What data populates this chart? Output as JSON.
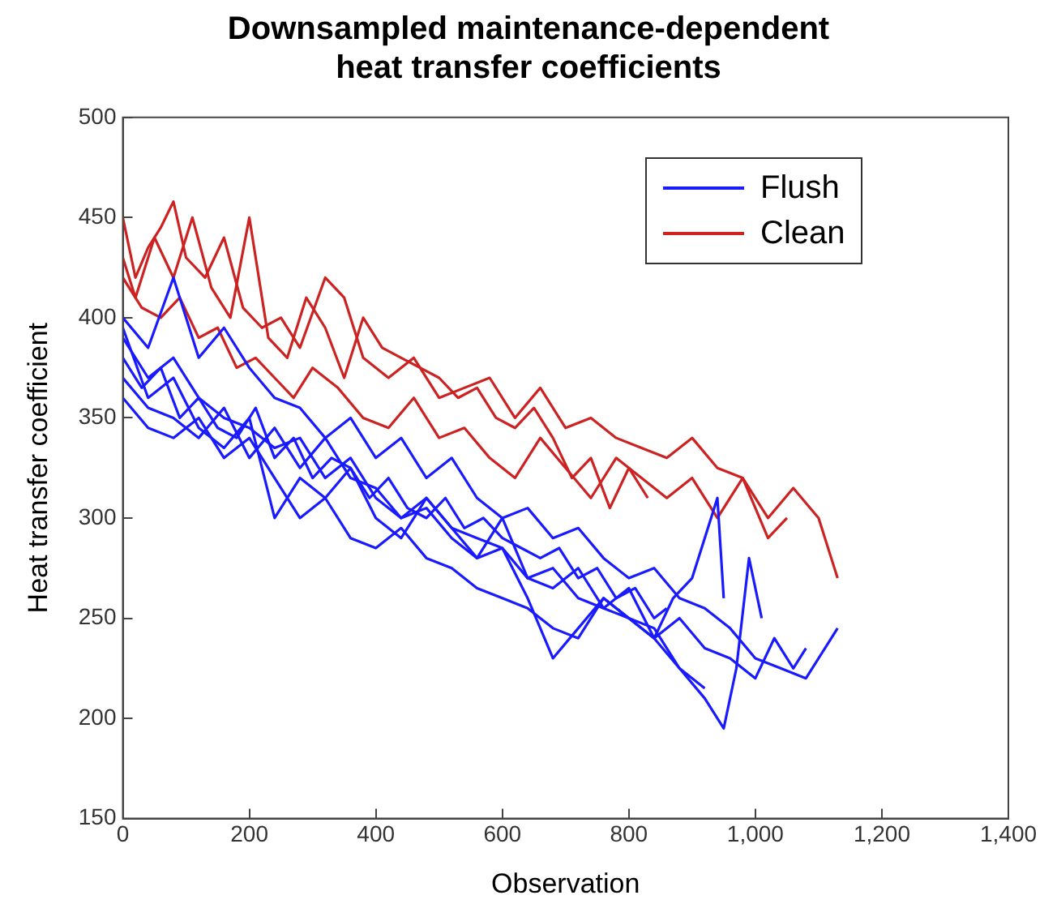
{
  "chart_data": {
    "type": "line",
    "title": "Downsampled maintenance-dependent heat transfer coefficients",
    "xlabel": "Observation",
    "ylabel": "Heat transfer coefficient",
    "xlim": [
      0,
      1400
    ],
    "xticks": [
      0,
      200,
      400,
      600,
      800,
      {
        "value": 1000,
        "label": "1,000"
      },
      {
        "value": 1200,
        "label": "1,200"
      },
      {
        "value": 1400,
        "label": "1,400"
      }
    ],
    "ylim": [
      150,
      500
    ],
    "yticks": [
      150,
      200,
      250,
      300,
      350,
      400,
      450,
      500
    ],
    "grid": false,
    "legend": "top right",
    "marker": "none",
    "line_style": "solid",
    "series": [
      {
        "name": "Flush",
        "color": "#1a1aff",
        "x": [
          0,
          40,
          80,
          120,
          160,
          200,
          240,
          280,
          320,
          360,
          400,
          440,
          480,
          520,
          560,
          600,
          640,
          680,
          720,
          760,
          800,
          840,
          880,
          920,
          960,
          1000,
          1040,
          1080,
          1110,
          1130
        ],
        "values": [
          400,
          385,
          420,
          380,
          395,
          375,
          360,
          355,
          340,
          350,
          330,
          340,
          320,
          330,
          310,
          300,
          305,
          290,
          295,
          280,
          270,
          275,
          260,
          255,
          245,
          230,
          225,
          220,
          235,
          245
        ]
      },
      {
        "color": "#1a1aff",
        "x": [
          0,
          40,
          80,
          120,
          160,
          200,
          240,
          280,
          320,
          360,
          400,
          440,
          480,
          520,
          560,
          600,
          640,
          680,
          720,
          760,
          800,
          840,
          880,
          920,
          950,
          970,
          990,
          1010
        ],
        "values": [
          370,
          355,
          350,
          340,
          355,
          330,
          345,
          325,
          340,
          320,
          315,
          300,
          310,
          295,
          290,
          285,
          270,
          275,
          260,
          255,
          250,
          245,
          225,
          210,
          195,
          225,
          280,
          250
        ]
      },
      {
        "color": "#1a1aff",
        "x": [
          0,
          40,
          80,
          120,
          160,
          200,
          240,
          280,
          320,
          360,
          400,
          440,
          480,
          520,
          560,
          600,
          640,
          680,
          720,
          760,
          800,
          840,
          870,
          900,
          920,
          940,
          950
        ],
        "values": [
          360,
          345,
          340,
          350,
          330,
          340,
          320,
          300,
          310,
          290,
          285,
          295,
          280,
          275,
          265,
          260,
          255,
          245,
          240,
          260,
          250,
          240,
          260,
          270,
          290,
          310,
          260
        ]
      },
      {
        "color": "#1a1aff",
        "x": [
          0,
          40,
          80,
          120,
          160,
          200,
          240,
          280,
          320,
          360,
          400,
          440,
          480,
          520,
          560,
          600,
          640,
          680,
          720,
          760,
          800,
          840,
          880,
          920
        ],
        "values": [
          390,
          370,
          380,
          360,
          350,
          345,
          335,
          340,
          320,
          330,
          310,
          300,
          305,
          290,
          280,
          285,
          260,
          230,
          245,
          260,
          250,
          240,
          225,
          215
        ]
      },
      {
        "color": "#1a1aff",
        "x": [
          0,
          30,
          60,
          90,
          120,
          150,
          180,
          210,
          240,
          270,
          300,
          330,
          360,
          390,
          420,
          450,
          480,
          510,
          540,
          570,
          600,
          630,
          660,
          690,
          720,
          750,
          780,
          810,
          840,
          860
        ],
        "values": [
          380,
          365,
          375,
          350,
          360,
          345,
          340,
          355,
          330,
          340,
          320,
          330,
          325,
          310,
          320,
          305,
          300,
          310,
          295,
          300,
          290,
          285,
          280,
          285,
          270,
          275,
          260,
          265,
          250,
          255
        ]
      },
      {
        "color": "#1a1aff",
        "x": [
          0,
          40,
          80,
          120,
          160,
          200,
          240,
          280,
          320,
          360,
          400,
          440,
          480,
          520,
          560,
          600,
          640,
          680,
          720,
          760,
          800,
          840,
          880,
          920,
          960,
          1000,
          1030,
          1060,
          1080
        ],
        "values": [
          395,
          360,
          370,
          345,
          335,
          350,
          300,
          320,
          310,
          325,
          300,
          290,
          310,
          295,
          280,
          300,
          270,
          265,
          275,
          255,
          265,
          240,
          250,
          235,
          230,
          220,
          240,
          225,
          235
        ]
      },
      {
        "name": "Clean",
        "color": "#cc2222",
        "x": [
          0,
          20,
          40,
          60,
          80,
          100,
          130,
          160,
          190,
          220,
          250,
          280,
          320,
          350,
          380,
          420,
          460,
          500,
          540,
          580,
          620,
          660,
          700,
          740,
          780,
          820,
          860,
          900,
          940,
          980,
          1020,
          1060,
          1100,
          1120,
          1130
        ],
        "values": [
          450,
          420,
          435,
          445,
          458,
          430,
          420,
          440,
          405,
          395,
          400,
          385,
          420,
          410,
          380,
          370,
          380,
          360,
          365,
          370,
          350,
          365,
          345,
          350,
          340,
          335,
          330,
          340,
          325,
          320,
          300,
          315,
          300,
          280,
          270
        ]
      },
      {
        "color": "#cc2222",
        "x": [
          0,
          30,
          60,
          90,
          120,
          150,
          180,
          210,
          240,
          270,
          300,
          340,
          380,
          420,
          460,
          500,
          540,
          580,
          620,
          660,
          700,
          740,
          780,
          820,
          860,
          900,
          940,
          980,
          1020,
          1050
        ],
        "values": [
          420,
          405,
          400,
          410,
          390,
          395,
          375,
          380,
          370,
          360,
          375,
          365,
          350,
          345,
          360,
          340,
          345,
          330,
          320,
          340,
          325,
          310,
          330,
          320,
          310,
          320,
          300,
          320,
          290,
          300
        ]
      },
      {
        "color": "#cc2222",
        "x": [
          0,
          20,
          50,
          80,
          110,
          140,
          170,
          200,
          230,
          260,
          290,
          320,
          350,
          380,
          410,
          440,
          470,
          500,
          530,
          560,
          590,
          620,
          650,
          680,
          710,
          740,
          770,
          800,
          830
        ],
        "values": [
          430,
          410,
          440,
          420,
          450,
          415,
          400,
          450,
          390,
          380,
          410,
          395,
          370,
          400,
          385,
          380,
          375,
          370,
          360,
          365,
          350,
          345,
          355,
          340,
          320,
          330,
          305,
          325,
          310
        ]
      }
    ]
  }
}
